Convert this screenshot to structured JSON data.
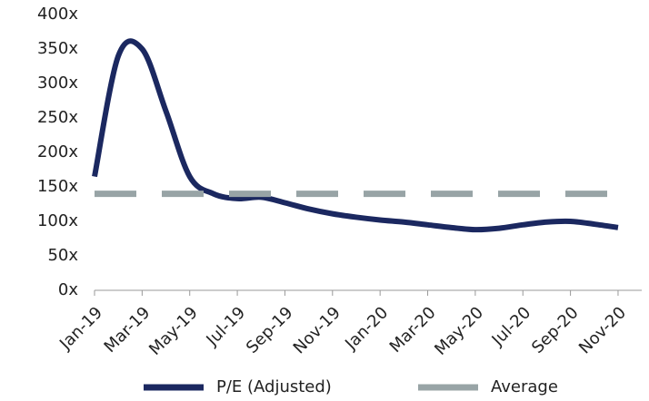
{
  "chart_data": {
    "type": "line",
    "categories": [
      "Jan-19",
      null,
      "Mar-19",
      null,
      "May-19",
      null,
      "Jul-19",
      null,
      "Sep-19",
      null,
      "Nov-19",
      null,
      "Jan-20",
      null,
      "Mar-20",
      null,
      "May-20",
      null,
      "Jul-20",
      null,
      "Sep-20",
      null,
      "Nov-20"
    ],
    "series": [
      {
        "name": "P/E (Adjusted)",
        "color": "#1b2860",
        "values": [
          165,
          340,
          350,
          260,
          165,
          140,
          133,
          135,
          127,
          118,
          111,
          106,
          102,
          99,
          95,
          91,
          88,
          90,
          95,
          99,
          100,
          96,
          91
        ]
      },
      {
        "name": "Average",
        "color": "#98a4a6",
        "dashed": true,
        "values": [
          140,
          140,
          140,
          140,
          140,
          140,
          140,
          140,
          140,
          140,
          140,
          140,
          140,
          140,
          140,
          140,
          140,
          140,
          140,
          140,
          140,
          140,
          140
        ]
      }
    ],
    "ylim": [
      0,
      400
    ],
    "yticks": [
      {
        "value": 0,
        "label": "0x"
      },
      {
        "value": 50,
        "label": "50x"
      },
      {
        "value": 100,
        "label": "100x"
      },
      {
        "value": 150,
        "label": "150x"
      },
      {
        "value": 200,
        "label": "200x"
      },
      {
        "value": 250,
        "label": "250x"
      },
      {
        "value": 300,
        "label": "300x"
      },
      {
        "value": 350,
        "label": "350x"
      },
      {
        "value": 400,
        "label": "400x"
      }
    ],
    "grid": false,
    "legend": "bottom"
  }
}
